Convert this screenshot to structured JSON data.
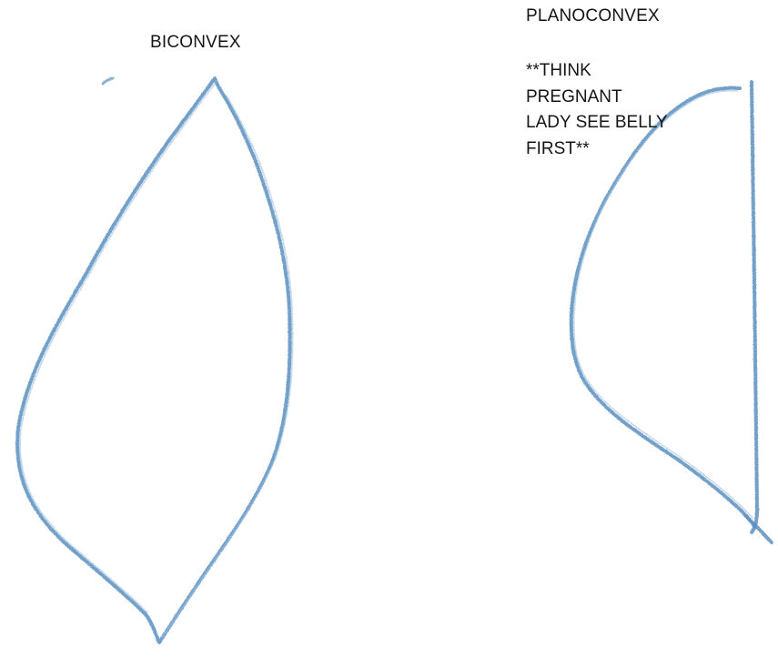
{
  "drawing": {
    "stroke_color": "#5b8fbe",
    "stroke_highlight": "#9fc0de",
    "background": "#ffffff"
  },
  "biconvex": {
    "label": "BICONVEX"
  },
  "planoconvex": {
    "label": "PLANOCONVEX",
    "note_lines": [
      "**THINK",
      "PREGNANT",
      "LADY SEE BELLY",
      "FIRST**"
    ]
  }
}
